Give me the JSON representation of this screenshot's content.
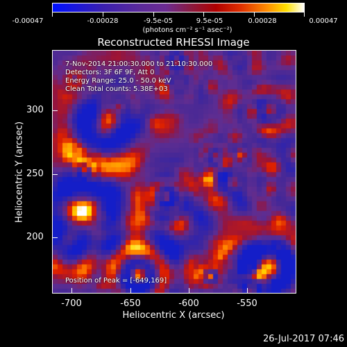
{
  "colorbar": {
    "labels": [
      "-0.00047",
      "-0.00028",
      "-9.5e-05",
      "9.5e-05",
      "0.00028",
      "0.00047"
    ],
    "units": "(photons cm⁻² s⁻¹ asec⁻²)"
  },
  "title": "Reconstructed RHESSI Image",
  "info": {
    "line1": "7-Nov-2014 21:00:30.000 to 21:10:30.000",
    "line2": "Detectors: 3F 6F 9F, Att 0",
    "line3": "Energy Range: 25.0 - 50.0 keV",
    "line4": "Clean      Total counts: 5.38E+03",
    "peak": "Position of Peak = [-649,169]"
  },
  "axes": {
    "xlabel": "Heliocentric X (arcsec)",
    "ylabel": "Heliocentric Y (arcsec)",
    "xticks": [
      "-700",
      "-650",
      "-600",
      "-550"
    ],
    "yticks": [
      "300",
      "250",
      "200"
    ]
  },
  "date": "26-Jul-2017 07:46",
  "colors": {
    "background": "#000000",
    "base": "#5a2c8c"
  }
}
